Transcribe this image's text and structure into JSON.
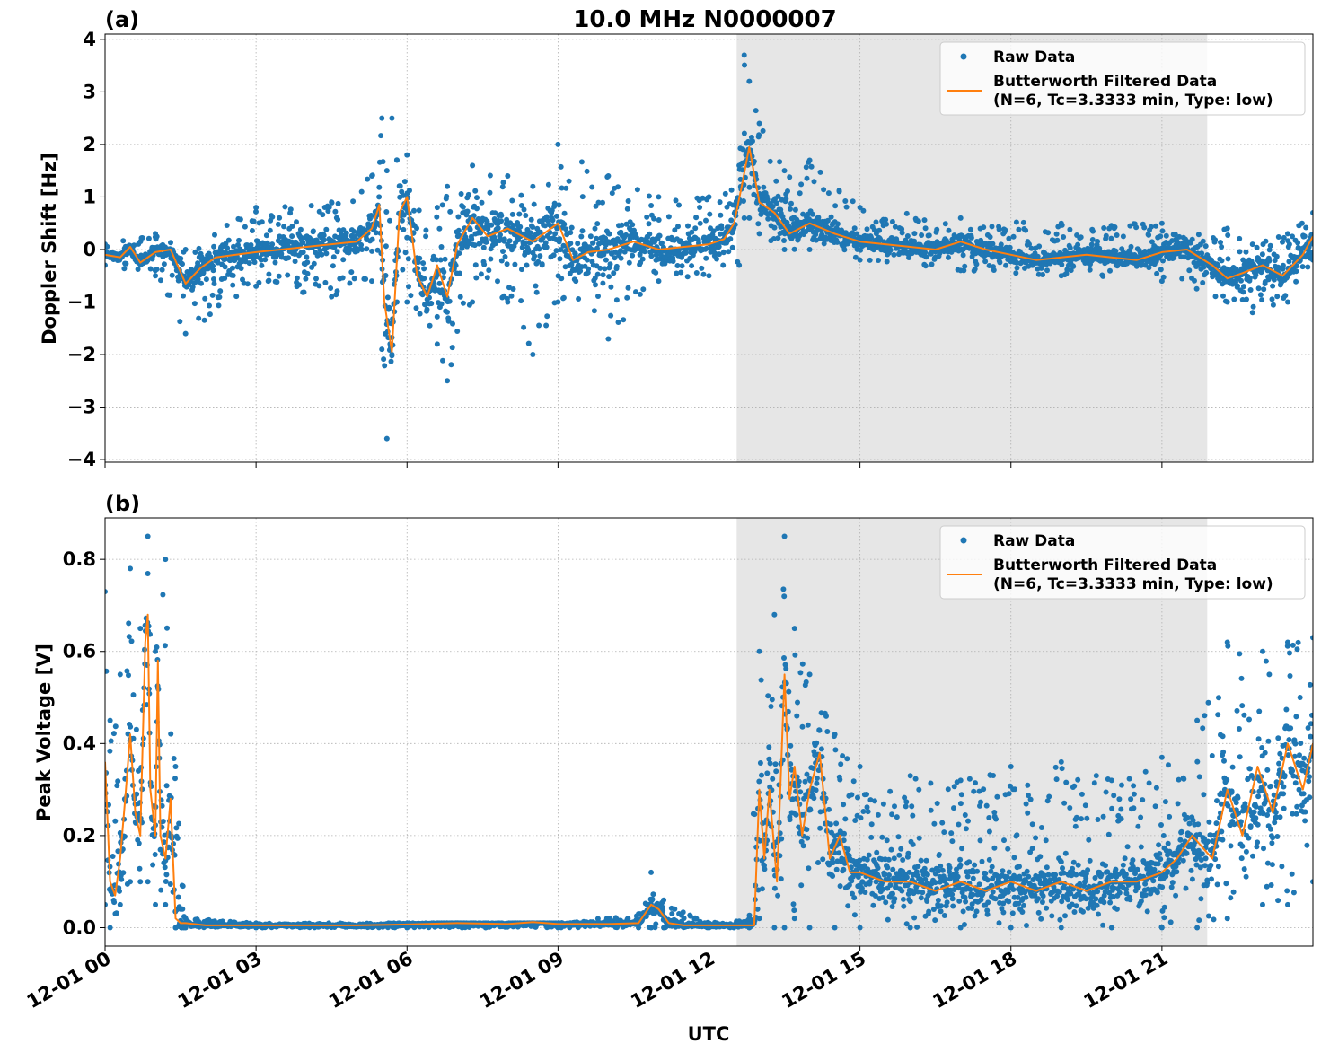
{
  "figure": {
    "title": "10.0 MHz N0000007",
    "xlabel": "UTC",
    "x_tick_labels": [
      "12-01 00",
      "12-01 03",
      "12-01 06",
      "12-01 09",
      "12-01 12",
      "12-01 15",
      "12-01 18",
      "12-01 21"
    ]
  },
  "colors": {
    "raw": "#1f77b4",
    "filtered": "#ff7f0e",
    "shade": "#e6e6e6",
    "grid": "#b0b0b0"
  },
  "chart_data": [
    {
      "type": "scatter",
      "panel_label": "(a)",
      "ylabel": "Doppler Shift [Hz]",
      "x_unit": "hours since 12-01 00:00 UTC",
      "xlim": [
        0,
        24
      ],
      "ylim": [
        -4.05,
        4.1
      ],
      "y_ticks": [
        -4,
        -3,
        -2,
        -1,
        0,
        1,
        2,
        3,
        4
      ],
      "y_tick_labels": [
        "−4",
        "−3",
        "−2",
        "−1",
        "0",
        "1",
        "2",
        "3",
        "4"
      ],
      "shaded_interval": [
        12.55,
        21.9
      ],
      "grid": true,
      "legend": {
        "placement": "upper right",
        "raw_label": "Raw Data",
        "filtered_label_line1": "Butterworth Filtered Data",
        "filtered_label_line2": "(N=6, Tc=3.3333 min, Type: low)"
      },
      "series": [
        {
          "name": "Butterworth Filtered Data",
          "kind": "line",
          "x": [
            0,
            0.3,
            0.5,
            0.7,
            1.0,
            1.3,
            1.6,
            1.9,
            2.2,
            2.6,
            3.0,
            3.5,
            4.0,
            4.5,
            5.0,
            5.3,
            5.45,
            5.55,
            5.7,
            5.85,
            6.0,
            6.2,
            6.4,
            6.6,
            6.8,
            7.0,
            7.3,
            7.6,
            8.0,
            8.5,
            9.0,
            9.3,
            9.6,
            10.0,
            10.5,
            11.0,
            11.5,
            12.0,
            12.3,
            12.5,
            12.65,
            12.8,
            13.0,
            13.3,
            13.6,
            14.0,
            14.5,
            15.0,
            15.5,
            16.0,
            16.5,
            17.0,
            17.5,
            18.0,
            18.5,
            19.0,
            19.5,
            20.0,
            20.5,
            21.0,
            21.5,
            22.0,
            22.3,
            22.6,
            23.0,
            23.4,
            23.8,
            24.0
          ],
          "y": [
            -0.1,
            -0.15,
            0.05,
            -0.25,
            -0.05,
            0.0,
            -0.65,
            -0.35,
            -0.15,
            -0.1,
            -0.05,
            0.0,
            0.05,
            0.1,
            0.15,
            0.4,
            0.85,
            -1.0,
            -1.95,
            0.7,
            1.0,
            -0.5,
            -0.9,
            -0.3,
            -0.9,
            0.1,
            0.6,
            0.25,
            0.4,
            0.15,
            0.5,
            -0.2,
            -0.05,
            0.0,
            0.15,
            0.0,
            0.05,
            0.1,
            0.2,
            0.5,
            1.2,
            1.95,
            0.9,
            0.7,
            0.3,
            0.5,
            0.3,
            0.15,
            0.1,
            0.05,
            0.0,
            0.15,
            0.0,
            -0.1,
            -0.2,
            -0.15,
            -0.1,
            -0.15,
            -0.2,
            -0.05,
            0.0,
            -0.3,
            -0.55,
            -0.45,
            -0.3,
            -0.5,
            -0.1,
            0.25
          ]
        },
        {
          "name": "Raw Data",
          "kind": "scatter",
          "note": "dense scatter band around the filtered curve",
          "x": [
            0,
            1.0,
            1.6,
            3.0,
            4.5,
            5.3,
            5.5,
            5.6,
            5.7,
            5.8,
            6.0,
            6.6,
            6.8,
            7.3,
            8.0,
            8.5,
            9.0,
            10.0,
            11.0,
            12.0,
            12.6,
            12.7,
            12.8,
            13.0,
            13.5,
            14.0,
            15.0,
            17.0,
            19.0,
            21.0,
            22.3,
            22.8,
            23.5,
            24.0
          ],
          "y_min": [
            -0.3,
            -0.5,
            -1.6,
            -0.7,
            -0.9,
            -0.6,
            -1.9,
            -3.6,
            -2.0,
            -1.0,
            -1.0,
            -1.8,
            -2.5,
            -1.0,
            -1.0,
            -2.0,
            -1.0,
            -1.7,
            -0.6,
            -0.5,
            -0.3,
            0.6,
            0.6,
            0.3,
            0.0,
            0.0,
            -0.2,
            -0.4,
            -0.5,
            -0.6,
            -1.0,
            -1.2,
            -1.0,
            -0.2
          ],
          "y_max": [
            0.1,
            0.3,
            0.0,
            0.8,
            0.9,
            1.4,
            2.5,
            1.5,
            2.5,
            1.7,
            1.8,
            0.8,
            1.2,
            1.6,
            1.4,
            1.2,
            2.0,
            1.4,
            1.0,
            1.0,
            1.6,
            3.7,
            3.2,
            2.4,
            1.5,
            1.7,
            0.8,
            0.6,
            0.5,
            0.5,
            0.4,
            0.1,
            0.3,
            0.7
          ]
        }
      ]
    },
    {
      "type": "scatter",
      "panel_label": "(b)",
      "ylabel": "Peak Voltage [V]",
      "x_unit": "hours since 12-01 00:00 UTC",
      "xlim": [
        0,
        24
      ],
      "ylim": [
        -0.04,
        0.89
      ],
      "y_ticks": [
        0.0,
        0.2,
        0.4,
        0.6,
        0.8
      ],
      "y_tick_labels": [
        "0.0",
        "0.2",
        "0.4",
        "0.6",
        "0.8"
      ],
      "shaded_interval": [
        12.55,
        21.9
      ],
      "grid": true,
      "legend": {
        "placement": "upper right",
        "raw_label": "Raw Data",
        "filtered_label_line1": "Butterworth Filtered Data",
        "filtered_label_line2": "(N=6, Tc=3.3333 min, Type: low)"
      },
      "series": [
        {
          "name": "Butterworth Filtered Data",
          "kind": "line",
          "x": [
            0,
            0.1,
            0.2,
            0.3,
            0.4,
            0.5,
            0.6,
            0.7,
            0.8,
            0.85,
            0.9,
            1.0,
            1.05,
            1.1,
            1.2,
            1.3,
            1.4,
            1.5,
            1.6,
            2.0,
            3.0,
            4.0,
            5.0,
            6.0,
            7.0,
            8.0,
            8.5,
            9.0,
            10.0,
            10.6,
            10.85,
            11.0,
            11.2,
            11.5,
            12.0,
            12.5,
            12.9,
            13.0,
            13.1,
            13.2,
            13.35,
            13.5,
            13.6,
            13.7,
            13.85,
            14.0,
            14.2,
            14.4,
            14.6,
            14.8,
            15.0,
            15.5,
            16.0,
            16.5,
            17.0,
            17.5,
            18.0,
            18.5,
            19.0,
            19.5,
            20.0,
            20.5,
            21.0,
            21.3,
            21.6,
            22.0,
            22.3,
            22.6,
            22.9,
            23.2,
            23.5,
            23.8,
            24.0
          ],
          "y": [
            0.36,
            0.1,
            0.07,
            0.15,
            0.28,
            0.42,
            0.25,
            0.2,
            0.62,
            0.68,
            0.3,
            0.2,
            0.58,
            0.2,
            0.15,
            0.28,
            0.02,
            0.01,
            0.01,
            0.005,
            0.005,
            0.005,
            0.005,
            0.007,
            0.01,
            0.008,
            0.012,
            0.008,
            0.008,
            0.01,
            0.05,
            0.04,
            0.01,
            0.005,
            0.005,
            0.005,
            0.005,
            0.3,
            0.15,
            0.3,
            0.1,
            0.55,
            0.28,
            0.35,
            0.2,
            0.3,
            0.38,
            0.15,
            0.2,
            0.12,
            0.12,
            0.1,
            0.1,
            0.08,
            0.1,
            0.08,
            0.1,
            0.08,
            0.1,
            0.08,
            0.1,
            0.1,
            0.12,
            0.15,
            0.2,
            0.15,
            0.3,
            0.2,
            0.35,
            0.25,
            0.4,
            0.3,
            0.4
          ]
        },
        {
          "name": "Raw Data",
          "kind": "scatter",
          "note": "dense scatter band around the filtered curve",
          "x": [
            0,
            0.1,
            0.3,
            0.5,
            0.7,
            0.85,
            1.0,
            1.2,
            1.4,
            1.6,
            3.0,
            6.0,
            9.0,
            10.6,
            10.85,
            11.1,
            12.0,
            12.8,
            13.0,
            13.3,
            13.5,
            13.7,
            14.0,
            14.5,
            15.0,
            16.0,
            17.0,
            18.0,
            19.0,
            20.0,
            21.0,
            21.7,
            22.3,
            23.0,
            23.5,
            24.0
          ],
          "y_min": [
            0.05,
            0.0,
            0.05,
            0.1,
            0.1,
            0.1,
            0.05,
            0.05,
            0.0,
            0.0,
            0.0,
            0.0,
            0.0,
            0.0,
            0.0,
            0.0,
            0.0,
            0.0,
            0.02,
            0.0,
            0.0,
            0.02,
            0.0,
            0.0,
            0.0,
            0.0,
            0.0,
            0.0,
            0.0,
            0.0,
            0.0,
            0.0,
            0.02,
            0.05,
            0.05,
            0.1
          ],
          "y_max": [
            0.73,
            0.45,
            0.55,
            0.78,
            0.65,
            0.85,
            0.6,
            0.8,
            0.35,
            0.02,
            0.01,
            0.01,
            0.01,
            0.03,
            0.12,
            0.06,
            0.01,
            0.02,
            0.6,
            0.68,
            0.85,
            0.65,
            0.55,
            0.42,
            0.35,
            0.33,
            0.32,
            0.35,
            0.36,
            0.32,
            0.37,
            0.45,
            0.62,
            0.6,
            0.62,
            0.63
          ]
        }
      ]
    }
  ]
}
